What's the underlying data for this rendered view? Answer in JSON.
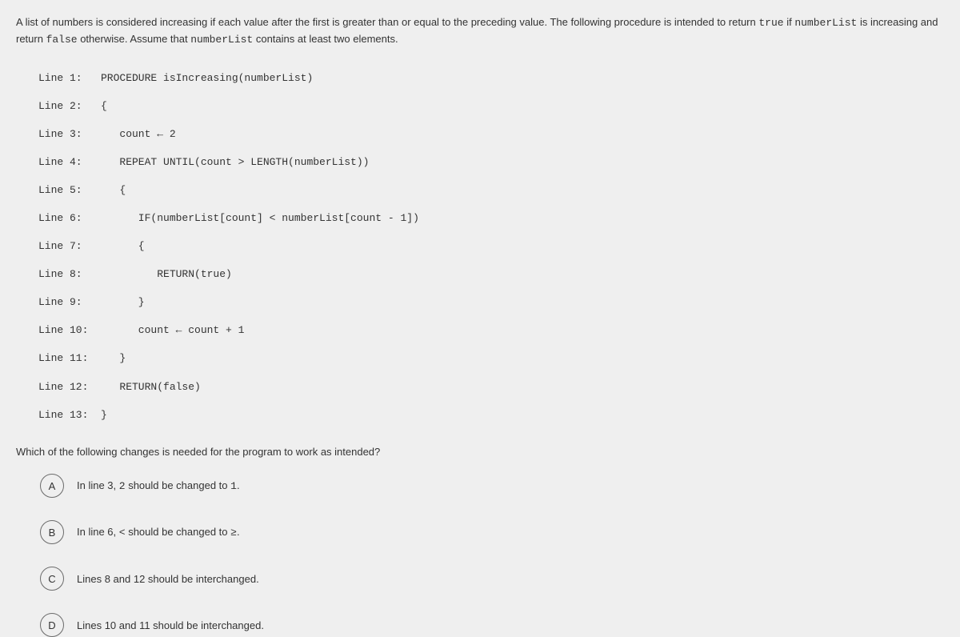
{
  "intro": {
    "part1": "A list of numbers is considered increasing if each value after the first is greater than or equal to the preceding value. The following procedure is intended to return ",
    "kw_true": "true",
    "part2": " if ",
    "kw_nl": "numberList",
    "part3": " is increasing and return ",
    "kw_false": "false",
    "part4": " otherwise. Assume that ",
    "kw_nl2": "numberList",
    "part5": " contains at least two elements."
  },
  "code": [
    {
      "ln": "Line 1:",
      "txt": "PROCEDURE isIncreasing(numberList)"
    },
    {
      "ln": "Line 2:",
      "txt": "{"
    },
    {
      "ln": "Line 3:",
      "txt": "   count ← 2"
    },
    {
      "ln": "Line 4:",
      "txt": "   REPEAT UNTIL(count > LENGTH(numberList))"
    },
    {
      "ln": "Line 5:",
      "txt": "   {"
    },
    {
      "ln": "Line 6:",
      "txt": "      IF(numberList[count] < numberList[count - 1])"
    },
    {
      "ln": "Line 7:",
      "txt": "      {"
    },
    {
      "ln": "Line 8:",
      "txt": "         RETURN(true)"
    },
    {
      "ln": "Line 9:",
      "txt": "      }"
    },
    {
      "ln": "Line 10:",
      "txt": "      count ← count + 1"
    },
    {
      "ln": "Line 11:",
      "txt": "   }"
    },
    {
      "ln": "Line 12:",
      "txt": "   RETURN(false)"
    },
    {
      "ln": "Line 13:",
      "txt": "}"
    }
  ],
  "question2": "Which of the following changes is needed for the program to work as intended?",
  "options": {
    "A": {
      "letter": "A",
      "p1": "In line 3, ",
      "m1": "2",
      "p2": " should be changed to ",
      "m2": "1",
      "p3": "."
    },
    "B": {
      "letter": "B",
      "p1": "In line 6, ",
      "m1": "<",
      "p2": " should be changed to ",
      "m2": "≥",
      "p3": "."
    },
    "C": {
      "letter": "C",
      "p1": "Lines 8 and 12 should be interchanged."
    },
    "D": {
      "letter": "D",
      "p1": "Lines 10 and 11 should be interchanged."
    }
  },
  "style": {
    "bg": "#efefef",
    "text_color": "#333333",
    "circle_border": "#6b6b6b",
    "body_fontsize": 13,
    "mono_font": "Courier New"
  }
}
